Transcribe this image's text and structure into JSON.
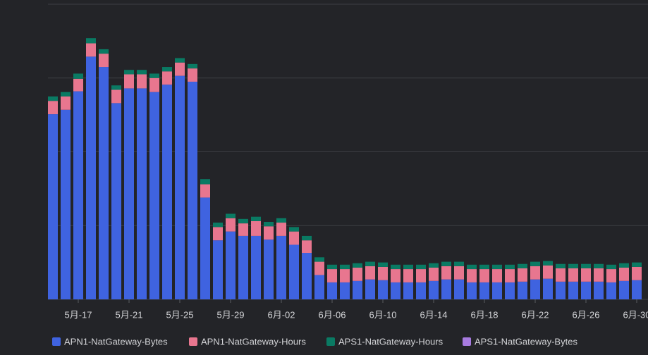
{
  "chart_data": {
    "type": "bar",
    "stacked": true,
    "categories": [
      null,
      null,
      "5月-17",
      null,
      null,
      null,
      "5月-21",
      null,
      null,
      null,
      "5月-25",
      null,
      null,
      null,
      "5月-29",
      null,
      null,
      null,
      "6月-02",
      null,
      null,
      null,
      "6月-06",
      null,
      null,
      null,
      "6月-10",
      null,
      null,
      null,
      "6月-14",
      null,
      null,
      null,
      "6月-18",
      null,
      null,
      null,
      "6月-22",
      null,
      null,
      null,
      "6月-26",
      null,
      null,
      null,
      "6月-30"
    ],
    "series": [
      {
        "name": "APN1-NatGateway-Bytes",
        "color": "#3f63e0",
        "values": [
          2.51,
          2.57,
          2.82,
          3.29,
          3.15,
          2.66,
          2.86,
          2.86,
          2.81,
          2.91,
          3.03,
          2.95,
          1.38,
          0.8,
          0.92,
          0.86,
          0.86,
          0.81,
          0.86,
          0.74,
          0.63,
          0.33,
          0.23,
          0.23,
          0.25,
          0.27,
          0.26,
          0.23,
          0.23,
          0.23,
          0.25,
          0.27,
          0.27,
          0.23,
          0.23,
          0.23,
          0.23,
          0.24,
          0.27,
          0.28,
          0.24,
          0.24,
          0.24,
          0.24,
          0.23,
          0.25,
          0.26
        ]
      },
      {
        "name": "APN1-NatGateway-Hours",
        "color": "#e8768f",
        "values": [
          0.18,
          0.18,
          0.17,
          0.18,
          0.18,
          0.18,
          0.19,
          0.19,
          0.19,
          0.18,
          0.18,
          0.18,
          0.18,
          0.18,
          0.18,
          0.17,
          0.2,
          0.18,
          0.18,
          0.18,
          0.17,
          0.18,
          0.18,
          0.18,
          0.18,
          0.18,
          0.18,
          0.18,
          0.18,
          0.18,
          0.18,
          0.18,
          0.18,
          0.18,
          0.18,
          0.18,
          0.18,
          0.18,
          0.18,
          0.18,
          0.18,
          0.18,
          0.18,
          0.18,
          0.18,
          0.18,
          0.18
        ]
      },
      {
        "name": "APS1-NatGateway-Hours",
        "color": "#0a7a63",
        "values": [
          0.06,
          0.06,
          0.07,
          0.07,
          0.06,
          0.06,
          0.06,
          0.06,
          0.06,
          0.06,
          0.06,
          0.06,
          0.07,
          0.06,
          0.06,
          0.06,
          0.06,
          0.06,
          0.06,
          0.06,
          0.06,
          0.06,
          0.06,
          0.06,
          0.06,
          0.06,
          0.06,
          0.06,
          0.06,
          0.06,
          0.06,
          0.06,
          0.06,
          0.06,
          0.06,
          0.06,
          0.06,
          0.06,
          0.06,
          0.06,
          0.06,
          0.06,
          0.06,
          0.06,
          0.06,
          0.06,
          0.06
        ]
      },
      {
        "name": "APS1-NatGateway-Bytes",
        "color": "#a77be0",
        "values": [
          0,
          0,
          0,
          0,
          0,
          0,
          0,
          0,
          0,
          0,
          0,
          0,
          0,
          0,
          0,
          0,
          0,
          0,
          0,
          0,
          0,
          0,
          0,
          0,
          0,
          0,
          0,
          0,
          0,
          0,
          0,
          0,
          0,
          0,
          0,
          0,
          0,
          0,
          0,
          0,
          0,
          0,
          0,
          0,
          0,
          0,
          0
        ]
      }
    ],
    "ylim": [
      0,
      4
    ],
    "yticks": [
      0,
      1,
      2,
      3,
      4
    ],
    "grid": true
  }
}
